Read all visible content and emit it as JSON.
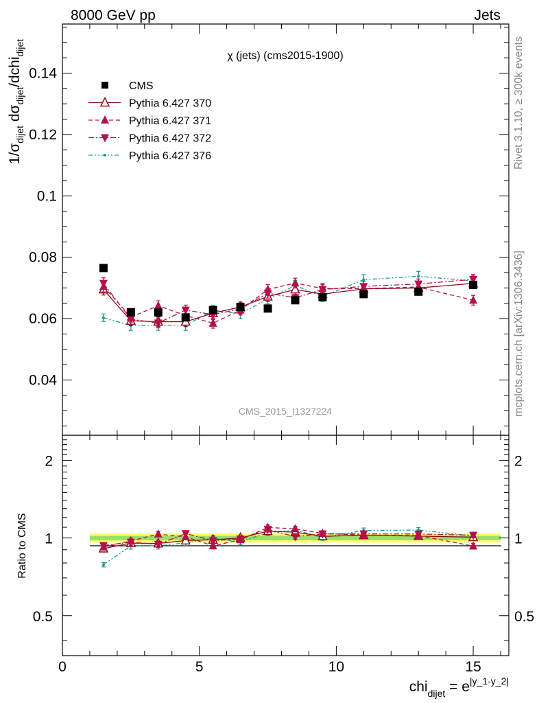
{
  "header": {
    "left": "8000 GeV pp",
    "right": "Jets"
  },
  "side_labels": {
    "rivet": "Rivet 3.1.10, ≥ 300k events",
    "source": "mcplots.cern.ch [arXiv:1306.3436]"
  },
  "chart_data": [
    {
      "type": "scatter",
      "panel": "main",
      "title": "χ (jets) (cms2015-1900)",
      "watermark": "CMS_2015_I1327224",
      "ylabel": "1/σ_dijet dσ_dijet/dchi_dijet",
      "xlim": [
        0,
        16.3
      ],
      "ylim": [
        0.022,
        0.156
      ],
      "yticks": [
        0.04,
        0.06,
        0.08,
        0.1,
        0.12,
        0.14
      ],
      "ytick_labels": [
        "0.04",
        "0.06",
        "0.08",
        "0.1",
        "0.12",
        "0.14"
      ],
      "x": [
        1.5,
        2.5,
        3.5,
        4.5,
        5.5,
        6.5,
        7.5,
        8.5,
        9.5,
        11.0,
        13.0,
        15.0
      ],
      "series": [
        {
          "name": "CMS",
          "color": "#000000",
          "marker": "square",
          "values": [
            0.0765,
            0.0621,
            0.062,
            0.0604,
            0.0628,
            0.0638,
            0.0633,
            0.066,
            0.067,
            0.068,
            0.0688,
            0.071
          ]
        },
        {
          "name": "Pythia 6.427 370",
          "color": "#8b0a1a",
          "marker": "triangle-up-open",
          "line": "solid",
          "values": [
            0.0695,
            0.0593,
            0.059,
            0.059,
            0.0618,
            0.0638,
            0.0672,
            0.0695,
            0.068,
            0.0697,
            0.07,
            0.0715
          ],
          "errors": [
            0.0018,
            0.0016,
            0.0016,
            0.0016,
            0.0016,
            0.0016,
            0.0016,
            0.0016,
            0.0016,
            0.0016,
            0.0016,
            0.0016
          ]
        },
        {
          "name": "Pythia 6.427 371",
          "color": "#b5104a",
          "marker": "triangle-up",
          "line": "dashed",
          "values": [
            0.0705,
            0.0605,
            0.0642,
            0.061,
            0.0585,
            0.0628,
            0.0695,
            0.0716,
            0.0698,
            0.0698,
            0.0703,
            0.066
          ],
          "errors": [
            0.0018,
            0.0016,
            0.0016,
            0.0016,
            0.0016,
            0.0016,
            0.0016,
            0.0016,
            0.0016,
            0.0016,
            0.0016,
            0.0016
          ]
        },
        {
          "name": "Pythia 6.427 372",
          "color": "#b5104a",
          "marker": "triangle-down",
          "line": "dashdot",
          "values": [
            0.0715,
            0.0598,
            0.0586,
            0.0628,
            0.0613,
            0.0632,
            0.0683,
            0.0668,
            0.0695,
            0.0705,
            0.0713,
            0.0728
          ],
          "errors": [
            0.0018,
            0.0016,
            0.0016,
            0.0016,
            0.0016,
            0.0016,
            0.0016,
            0.0016,
            0.0016,
            0.0016,
            0.0016,
            0.0016
          ]
        },
        {
          "name": "Pythia 6.427 376",
          "color": "#1a9a8a",
          "marker": "dot",
          "line": "dashdotdot",
          "values": [
            0.0603,
            0.0578,
            0.0578,
            0.0578,
            0.0627,
            0.0616,
            0.0664,
            0.0708,
            0.0672,
            0.0727,
            0.0738,
            0.0723
          ],
          "errors": [
            0.0012,
            0.0016,
            0.0016,
            0.0016,
            0.0016,
            0.0016,
            0.0016,
            0.0016,
            0.0016,
            0.0016,
            0.0016,
            0.0016
          ]
        }
      ],
      "legend_position": "top-left"
    },
    {
      "type": "scatter",
      "panel": "ratio",
      "ylabel": "Ratio to CMS",
      "xlabel": "chi_dijet = e^|y_1-y_2|",
      "xlim": [
        0,
        16.3
      ],
      "ylim": [
        0.35,
        2.5
      ],
      "yscale": "log",
      "yticks": [
        0.5,
        1,
        2
      ],
      "ytick_labels": [
        "0.5",
        "1",
        "2"
      ],
      "xticks": [
        0,
        5,
        10,
        15
      ],
      "xtick_labels": [
        "0",
        "5",
        "10",
        "15"
      ],
      "x": [
        1.5,
        2.5,
        3.5,
        4.5,
        5.5,
        6.5,
        7.5,
        8.5,
        9.5,
        11.0,
        13.0,
        15.0
      ],
      "band": {
        "inner": 0.02,
        "outer": 0.04
      },
      "series": [
        {
          "name": "Pythia 6.427 370",
          "values": [
            0.91,
            0.955,
            0.952,
            0.977,
            0.984,
            1.0,
            1.062,
            1.053,
            1.015,
            1.025,
            1.017,
            1.007
          ]
        },
        {
          "name": "Pythia 6.427 371",
          "values": [
            0.922,
            0.974,
            1.035,
            1.01,
            0.932,
            0.984,
            1.098,
            1.085,
            1.042,
            1.026,
            1.022,
            0.93
          ]
        },
        {
          "name": "Pythia 6.427 372",
          "values": [
            0.935,
            0.963,
            0.945,
            1.04,
            0.976,
            0.991,
            1.079,
            1.012,
            1.037,
            1.037,
            1.036,
            1.025
          ]
        },
        {
          "name": "Pythia 6.427 376",
          "values": [
            0.788,
            0.931,
            0.932,
            0.957,
            0.998,
            0.966,
            1.049,
            1.073,
            1.003,
            1.069,
            1.073,
            1.018
          ]
        }
      ]
    }
  ]
}
